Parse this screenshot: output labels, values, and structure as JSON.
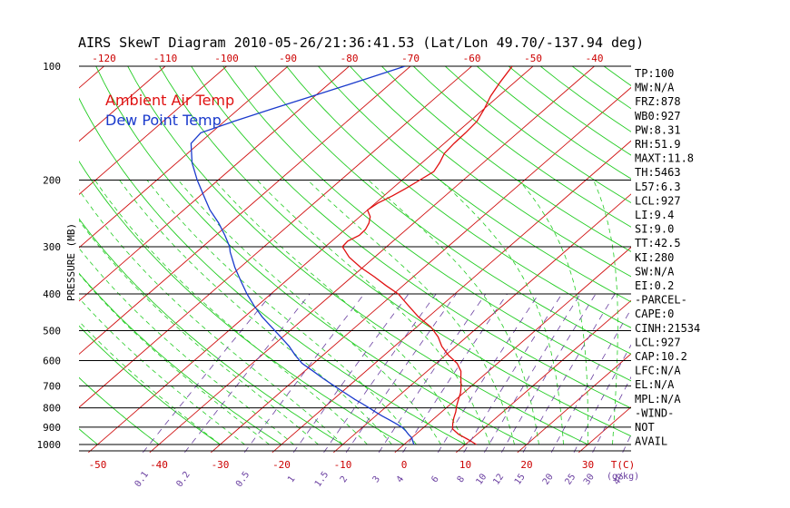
{
  "title": "AIRS SkewT Diagram 2010-05-26/21:36:41.53 (Lat/Lon 49.70/-137.94 deg)",
  "legend": {
    "air": "Ambient Air Temp",
    "dew": "Dew Point Temp"
  },
  "colors": {
    "air": "#e01010",
    "dew": "#1a3acc",
    "isotherm": "#d01010",
    "dry_adiabat": "#22cc22",
    "moist_adiabat": "#22cc22",
    "mixing_ratio": "#6a3fa0",
    "isobar": "#000000"
  },
  "side_panel": [
    "TP:100",
    "MW:N/A",
    "FRZ:878",
    "WB0:927",
    "PW:8.31",
    "RH:51.9",
    "MAXT:11.8",
    "TH:5463",
    "L57:6.3",
    "LCL:927",
    "LI:9.4",
    "SI:9.0",
    "TT:42.5",
    "KI:280",
    "SW:N/A",
    "EI:0.2",
    "-PARCEL-",
    "CAPE:0",
    "CINH:21534",
    "LCL:927",
    "CAP:10.2",
    "LFC:N/A",
    "EL:N/A",
    "MPL:N/A",
    "-WIND-",
    "NOT",
    "AVAIL"
  ],
  "chart_data": {
    "type": "line",
    "title": "AIRS SkewT Diagram 2010-05-26/21:36:41.53 (Lat/Lon 49.70/-137.94 deg)",
    "ylabel": "PRESSURE (MB)",
    "xlabel": "T(C)",
    "y_log_scale": true,
    "ylim": [
      1000,
      100
    ],
    "pressure_ticks": [
      100,
      200,
      300,
      400,
      500,
      600,
      700,
      800,
      900,
      1000
    ],
    "pressure_tick_labels": [
      "100",
      "200",
      "300",
      "400",
      "500",
      "600",
      "700",
      "800",
      "900",
      "1000"
    ],
    "bottom_temp_ticks": [
      -50,
      -40,
      -30,
      -20,
      -10,
      0,
      10,
      20,
      30
    ],
    "bottom_temp_labels": [
      "-50",
      "-40",
      "-30",
      "-20",
      "-10",
      "0",
      "10",
      "20",
      "30"
    ],
    "top_temp_ticks": [
      -120,
      -110,
      -100,
      -90,
      -80,
      -70,
      -60,
      -50,
      -40
    ],
    "top_temp_labels": [
      "-120",
      "-110",
      "-100",
      "-90",
      "-80",
      "-70",
      "-60",
      "-50",
      "-40"
    ],
    "mixing_ratio_labels": [
      "0.1",
      "0.2",
      "0.5",
      "1",
      "1.5",
      "2",
      "3",
      "4",
      "6",
      "8",
      "10",
      "12",
      "15",
      "20",
      "25",
      "30",
      "40"
    ],
    "mixing_ratio_unit": "(g/kg)",
    "temp_unit_label": "T(C)",
    "grid": true,
    "legend_position": "top-left",
    "series": [
      {
        "name": "Ambient Air Temp",
        "pressure": [
          1000,
          970,
          940,
          910,
          880,
          850,
          820,
          790,
          760,
          730,
          700,
          670,
          640,
          610,
          580,
          550,
          520,
          490,
          460,
          430,
          400,
          380,
          360,
          340,
          320,
          300,
          290,
          280,
          270,
          260,
          250,
          240,
          230,
          220,
          210,
          200,
          190,
          180,
          170,
          160,
          150,
          140,
          130,
          120,
          110,
          100
        ],
        "values": [
          11.8,
          9.5,
          7.0,
          5.0,
          4.0,
          3.1,
          2.3,
          1.3,
          0.4,
          -0.5,
          -1.7,
          -3.1,
          -4.5,
          -6.6,
          -9.6,
          -12.3,
          -14.6,
          -17.6,
          -21.6,
          -25.3,
          -29.2,
          -32.8,
          -36.4,
          -40.4,
          -44.1,
          -47.2,
          -47.4,
          -46.6,
          -46.7,
          -47.3,
          -48.3,
          -50.0,
          -49.6,
          -48.6,
          -47.8,
          -47.1,
          -46.4,
          -47.1,
          -48.1,
          -48.4,
          -48.5,
          -48.8,
          -49.9,
          -51.3,
          -52.4,
          -53.4
        ]
      },
      {
        "name": "Dew Point Temp",
        "pressure": [
          1000,
          980,
          960,
          940,
          920,
          900,
          880,
          860,
          840,
          820,
          800,
          780,
          760,
          740,
          720,
          700,
          670,
          640,
          610,
          580,
          550,
          520,
          490,
          460,
          430,
          400,
          370,
          340,
          310,
          300,
          280,
          260,
          240,
          220,
          200,
          180,
          160,
          150,
          140,
          130,
          120,
          110,
          100
        ],
        "values": [
          1.6,
          0.8,
          0.0,
          -1.2,
          -2.3,
          -3.6,
          -5.3,
          -7.1,
          -9.0,
          -10.8,
          -12.6,
          -14.5,
          -16.5,
          -18.4,
          -20.4,
          -22.4,
          -25.5,
          -28.6,
          -31.9,
          -34.6,
          -37.2,
          -40.3,
          -43.6,
          -47.1,
          -50.5,
          -53.9,
          -57.3,
          -60.9,
          -64.5,
          -65.6,
          -68.5,
          -71.8,
          -75.7,
          -79.4,
          -83.4,
          -87.5,
          -91.3,
          -91.7,
          -88.5,
          -84.7,
          -80.4,
          -75.8,
          -70.9
        ]
      }
    ]
  }
}
